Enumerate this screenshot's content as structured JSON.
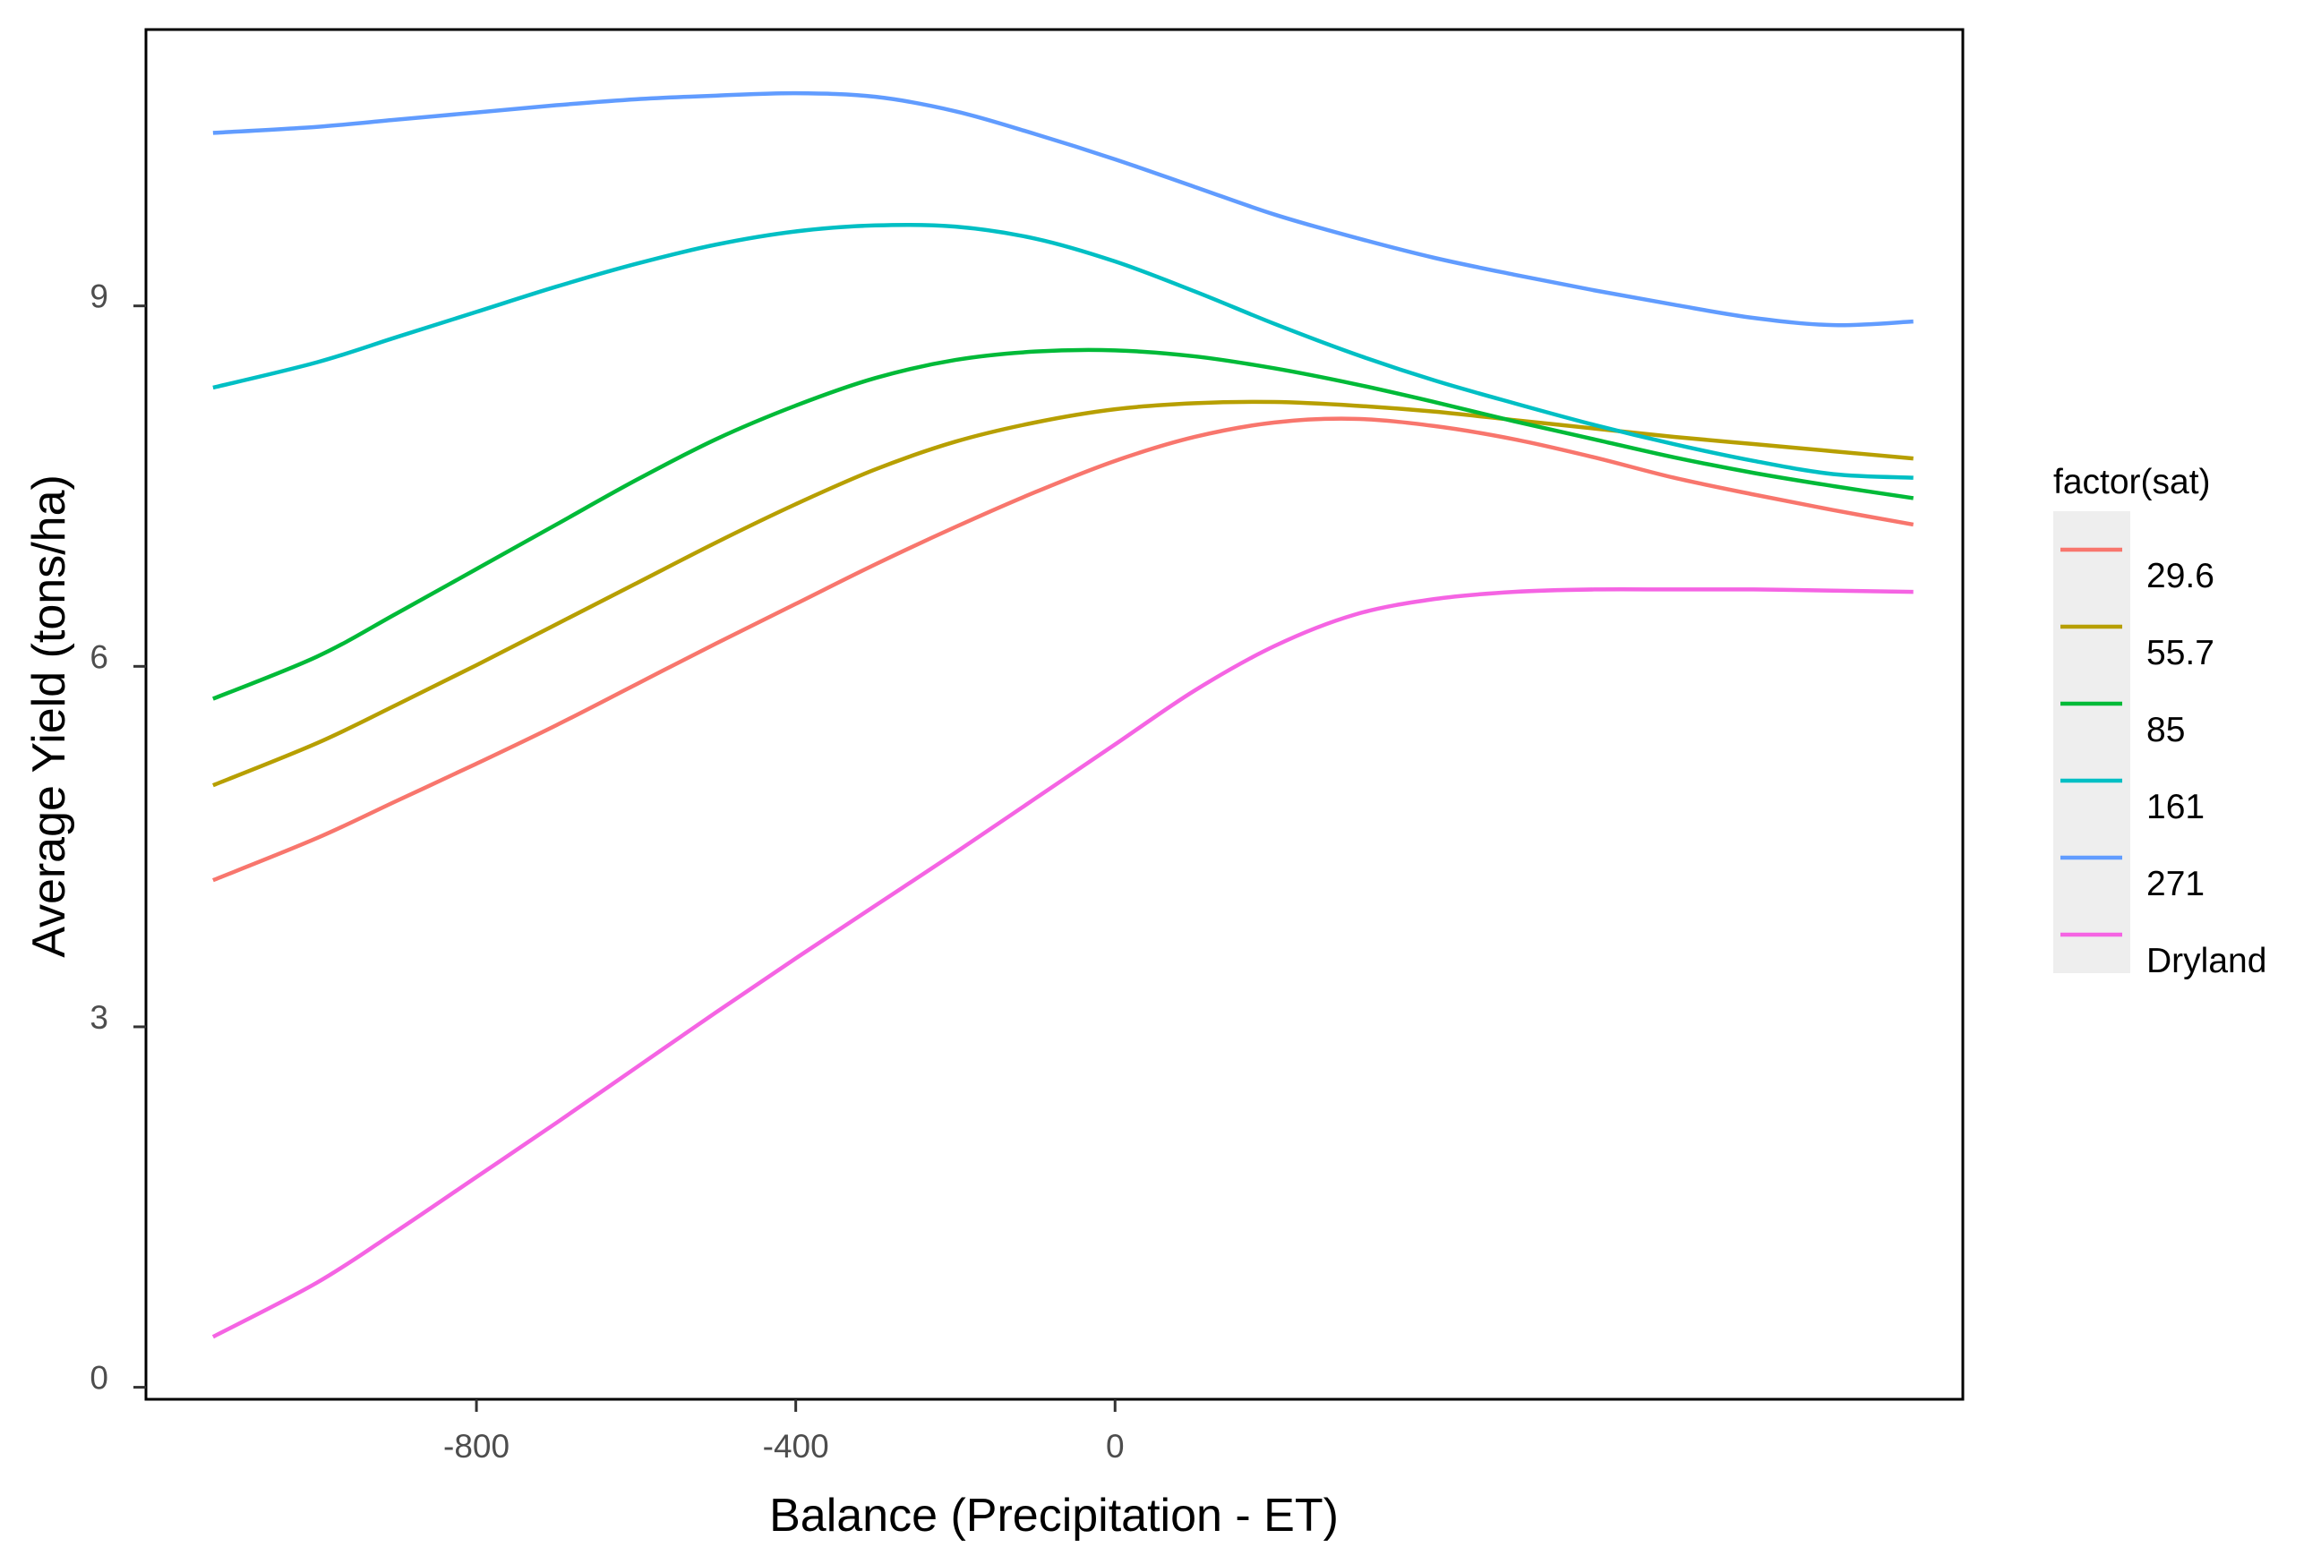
{
  "chart_data": {
    "type": "line",
    "title": "",
    "xlabel": "Balance (Precipitation - ET)",
    "ylabel": "Average Yield (tons/ha)",
    "xlim": [
      -1214,
      1062
    ],
    "ylim": [
      -0.1,
      11.3
    ],
    "xticks": [
      -800,
      -400,
      0
    ],
    "xtick_labels": [
      "-800",
      "-400",
      "0"
    ],
    "yticks": [
      0,
      3,
      6,
      9
    ],
    "ytick_labels": [
      "0",
      "3",
      "6",
      "9"
    ],
    "grid": false,
    "legend": {
      "title": "factor(sat)",
      "position": "right"
    },
    "x": [
      -1130,
      -1000,
      -900,
      -800,
      -700,
      -600,
      -500,
      -400,
      -300,
      -200,
      -100,
      0,
      100,
      200,
      300,
      400,
      500,
      600,
      700,
      800,
      900,
      1000
    ],
    "series": [
      {
        "name": "29.6",
        "color": "#F8766D",
        "values": [
          4.22,
          4.57,
          4.88,
          5.19,
          5.51,
          5.85,
          6.19,
          6.52,
          6.85,
          7.16,
          7.45,
          7.71,
          7.91,
          8.03,
          8.06,
          8.0,
          7.89,
          7.74,
          7.57,
          7.43,
          7.3,
          7.18
        ]
      },
      {
        "name": "55.7",
        "color": "#B79F00",
        "values": [
          5.01,
          5.36,
          5.68,
          6.01,
          6.35,
          6.69,
          7.03,
          7.35,
          7.64,
          7.87,
          8.03,
          8.14,
          8.19,
          8.2,
          8.17,
          8.12,
          8.05,
          7.98,
          7.91,
          7.85,
          7.79,
          7.73
        ]
      },
      {
        "name": "85",
        "color": "#00BA38",
        "values": [
          5.73,
          6.08,
          6.44,
          6.81,
          7.18,
          7.55,
          7.89,
          8.17,
          8.4,
          8.55,
          8.62,
          8.63,
          8.58,
          8.48,
          8.35,
          8.2,
          8.04,
          7.89,
          7.74,
          7.61,
          7.5,
          7.4
        ]
      },
      {
        "name": "161",
        "color": "#00BFC4",
        "values": [
          8.32,
          8.53,
          8.74,
          8.95,
          9.16,
          9.35,
          9.51,
          9.62,
          9.67,
          9.66,
          9.56,
          9.37,
          9.12,
          8.85,
          8.6,
          8.38,
          8.19,
          8.01,
          7.85,
          7.71,
          7.6,
          7.57
        ]
      },
      {
        "name": "271",
        "color": "#619CFF",
        "values": [
          10.44,
          10.49,
          10.55,
          10.61,
          10.67,
          10.72,
          10.75,
          10.77,
          10.74,
          10.62,
          10.43,
          10.22,
          9.99,
          9.76,
          9.57,
          9.4,
          9.26,
          9.13,
          9.01,
          8.9,
          8.84,
          8.87
        ]
      },
      {
        "name": "Dryland",
        "color": "#F564E3",
        "values": [
          0.42,
          0.87,
          1.3,
          1.75,
          2.2,
          2.66,
          3.12,
          3.57,
          4.01,
          4.45,
          4.9,
          5.35,
          5.8,
          6.17,
          6.43,
          6.56,
          6.62,
          6.64,
          6.64,
          6.64,
          6.63,
          6.62
        ]
      }
    ]
  }
}
